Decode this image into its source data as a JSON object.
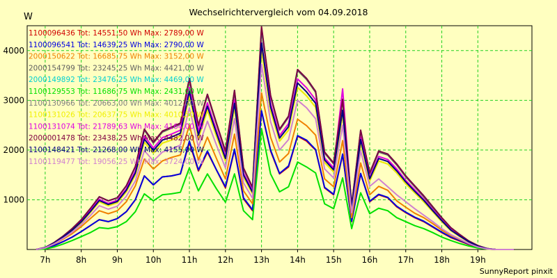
{
  "chart_data": {
    "type": "line",
    "title": "Wechselrichtervergleich vom 04.09.2018",
    "ylabel": "W",
    "xlabel": "",
    "footer": "SunnyReport pinxit",
    "ylim": [
      0,
      4500
    ],
    "xlim": [
      6.5,
      20.5
    ],
    "y_ticks": [
      1000,
      2000,
      3000,
      4000
    ],
    "y_tick_labels": [
      "1000",
      "2000",
      "3000",
      "4000"
    ],
    "x_ticks": [
      7,
      8,
      9,
      10,
      11,
      12,
      13,
      14,
      15,
      16,
      17,
      18,
      19
    ],
    "x_tick_labels": [
      "7h",
      "8h",
      "9h",
      "10h",
      "11h",
      "12h",
      "13h",
      "14h",
      "15h",
      "16h",
      "17h",
      "18h",
      "19h"
    ],
    "grid": true,
    "legend_position": "top-left",
    "x": [
      6.75,
      7.0,
      7.25,
      7.5,
      7.75,
      8.0,
      8.25,
      8.5,
      8.75,
      9.0,
      9.25,
      9.5,
      9.75,
      10.0,
      10.25,
      10.5,
      10.75,
      11.0,
      11.25,
      11.5,
      11.75,
      12.0,
      12.25,
      12.5,
      12.75,
      13.0,
      13.25,
      13.5,
      13.75,
      14.0,
      14.25,
      14.5,
      14.75,
      15.0,
      15.25,
      15.5,
      15.75,
      16.0,
      16.25,
      16.5,
      16.75,
      17.0,
      17.25,
      17.5,
      17.75,
      18.0,
      18.25,
      18.5,
      18.75,
      19.0,
      19.25,
      19.5,
      19.75,
      20.0
    ],
    "series": [
      {
        "name": "1100096436 Tot: 14551,50 Wh Max: 2789,00 W",
        "color": "#d00000",
        "values": [
          0,
          20,
          80,
          160,
          250,
          360,
          480,
          600,
          560,
          620,
          760,
          1000,
          1480,
          1300,
          1460,
          1480,
          1520,
          2150,
          1580,
          1960,
          1600,
          1240,
          2000,
          1020,
          780,
          2780,
          1980,
          1520,
          1660,
          2280,
          2180,
          2000,
          1240,
          1100,
          1900,
          560,
          1520,
          960,
          1100,
          1040,
          860,
          740,
          640,
          560,
          450,
          340,
          240,
          170,
          100,
          40,
          10,
          0,
          0,
          0
        ]
      },
      {
        "name": "1100096541 Tot: 14639,25 Wh Max: 2790,00 W",
        "color": "#0000e0",
        "values": [
          0,
          20,
          80,
          160,
          250,
          360,
          480,
          600,
          560,
          620,
          760,
          1000,
          1480,
          1300,
          1460,
          1480,
          1520,
          2180,
          1600,
          1980,
          1600,
          1260,
          2020,
          1040,
          800,
          2790,
          2000,
          1530,
          1680,
          2290,
          2200,
          2010,
          1250,
          1110,
          1920,
          570,
          1530,
          970,
          1110,
          1050,
          870,
          750,
          650,
          570,
          460,
          350,
          250,
          180,
          110,
          50,
          15,
          0,
          0,
          0
        ]
      },
      {
        "name": "2000150622 Tot: 16685,75 Wh Max: 3152,00 W",
        "color": "#f08000",
        "values": [
          0,
          30,
          110,
          210,
          320,
          460,
          620,
          780,
          720,
          780,
          960,
          1280,
          1820,
          1620,
          1780,
          1850,
          1900,
          2500,
          1800,
          2260,
          1830,
          1420,
          2320,
          1180,
          920,
          3150,
          2260,
          1760,
          1930,
          2620,
          2490,
          2300,
          1420,
          1260,
          2190,
          640,
          1740,
          1100,
          1270,
          1190,
          980,
          850,
          730,
          640,
          520,
          390,
          280,
          200,
          120,
          50,
          10,
          0,
          0,
          0
        ]
      },
      {
        "name": "2000154799 Tot: 23245,25 Wh Max: 4421,00 W",
        "color": "#606060",
        "values": [
          0,
          40,
          140,
          270,
          420,
          600,
          820,
          1060,
          980,
          1040,
          1280,
          1660,
          2400,
          2140,
          2360,
          2440,
          2520,
          3420,
          2480,
          3100,
          2520,
          1960,
          3160,
          1620,
          1240,
          4420,
          3080,
          2400,
          2660,
          3600,
          3420,
          3160,
          1940,
          1720,
          3000,
          880,
          2380,
          1520,
          1960,
          1900,
          1700,
          1460,
          1260,
          1060,
          840,
          620,
          420,
          280,
          160,
          70,
          20,
          0,
          0,
          0
        ]
      },
      {
        "name": "2000149892 Tot: 23476,25 Wh Max: 4469,00 W",
        "color": "#00d0d0",
        "values": [
          0,
          40,
          140,
          270,
          420,
          600,
          820,
          1060,
          980,
          1040,
          1280,
          1670,
          2420,
          2160,
          2380,
          2460,
          2540,
          3440,
          2500,
          3120,
          2540,
          1980,
          3200,
          1640,
          1250,
          4460,
          3100,
          2420,
          2680,
          3620,
          3440,
          3180,
          1960,
          1740,
          3020,
          890,
          2400,
          1540,
          1980,
          1920,
          1720,
          1480,
          1280,
          1080,
          860,
          640,
          440,
          300,
          170,
          80,
          20,
          0,
          0,
          0
        ]
      },
      {
        "name": "1100129553 Tot: 11686,75 Wh Max: 2431,00 W",
        "color": "#00e000",
        "values": [
          0,
          10,
          50,
          110,
          180,
          260,
          340,
          440,
          420,
          460,
          560,
          760,
          1120,
          980,
          1100,
          1120,
          1150,
          1640,
          1180,
          1520,
          1220,
          950,
          1520,
          780,
          600,
          2430,
          1520,
          1160,
          1260,
          1760,
          1660,
          1540,
          920,
          820,
          1440,
          420,
          1140,
          720,
          830,
          780,
          640,
          560,
          480,
          420,
          340,
          250,
          180,
          120,
          70,
          30,
          10,
          0,
          0,
          0
        ]
      },
      {
        "name": "1100130966 Tot: 20663,00 Wh Max: 4012,00 W",
        "color": "#808080",
        "values": [
          0,
          35,
          125,
          245,
          380,
          540,
          740,
          960,
          880,
          940,
          1160,
          1500,
          2160,
          1940,
          2140,
          2200,
          2280,
          3100,
          2240,
          2800,
          2280,
          1780,
          2860,
          1460,
          1120,
          4010,
          2790,
          2180,
          2400,
          3260,
          3090,
          2860,
          1750,
          1560,
          2720,
          800,
          2150,
          1380,
          1780,
          1720,
          1540,
          1320,
          1140,
          960,
          760,
          560,
          380,
          260,
          150,
          60,
          15,
          0,
          0,
          0
        ]
      },
      {
        "name": "1100131026 Tot: 20637,75 Wh Max: 4010,50 W",
        "color": "#f0f000",
        "values": [
          0,
          35,
          125,
          245,
          380,
          540,
          740,
          960,
          880,
          940,
          1160,
          1500,
          2160,
          1940,
          2140,
          2200,
          2280,
          3100,
          2240,
          2800,
          2280,
          1780,
          2860,
          1460,
          1120,
          4010,
          2790,
          2180,
          2400,
          3260,
          3090,
          2860,
          1750,
          1560,
          2720,
          800,
          2150,
          1380,
          1780,
          1720,
          1540,
          1320,
          1140,
          960,
          760,
          560,
          380,
          260,
          150,
          60,
          15,
          0,
          0,
          0
        ]
      },
      {
        "name": "1100131074 Tot: 21789,63 Wh Max: 4164,00 W",
        "color": "#e000e0",
        "values": [
          0,
          38,
          132,
          258,
          400,
          570,
          780,
          1010,
          930,
          990,
          1220,
          1580,
          2280,
          2040,
          2250,
          2320,
          2400,
          3260,
          2360,
          2950,
          2400,
          1870,
          3010,
          1540,
          1180,
          4160,
          2940,
          2290,
          2530,
          3430,
          3250,
          3010,
          1840,
          1640,
          3230,
          840,
          2260,
          1450,
          1870,
          1810,
          1620,
          1390,
          1200,
          1010,
          800,
          590,
          400,
          270,
          160,
          70,
          20,
          0,
          0,
          0
        ]
      },
      {
        "name": "2000001478 Tot: 23438,25 Wh Max: 4482,00 W",
        "color": "#800040",
        "values": [
          0,
          40,
          140,
          270,
          420,
          600,
          820,
          1060,
          980,
          1040,
          1280,
          1670,
          2420,
          2160,
          2380,
          2460,
          2540,
          3440,
          2500,
          3120,
          2540,
          1980,
          3200,
          1640,
          1250,
          4480,
          3100,
          2420,
          2680,
          3620,
          3440,
          3180,
          1960,
          1740,
          3020,
          890,
          2400,
          1540,
          1980,
          1920,
          1720,
          1480,
          1280,
          1080,
          860,
          640,
          440,
          300,
          170,
          80,
          20,
          0,
          0,
          0
        ]
      },
      {
        "name": "1100148421 Tot: 21268,00 Wh Max: 4155,00 W",
        "color": "#000080",
        "values": [
          0,
          36,
          128,
          250,
          390,
          555,
          760,
          985,
          905,
          965,
          1190,
          1540,
          2220,
          1990,
          2200,
          2260,
          2340,
          3180,
          2300,
          2880,
          2340,
          1830,
          2940,
          1500,
          1150,
          4150,
          2870,
          2240,
          2470,
          3350,
          3170,
          2940,
          1800,
          1600,
          2800,
          820,
          2210,
          1420,
          1830,
          1770,
          1580,
          1360,
          1170,
          990,
          780,
          580,
          390,
          270,
          155,
          65,
          18,
          0,
          0,
          0
        ]
      },
      {
        "name": "1100119477 Tot: 19056,25 Wh Max: 3724,00 W",
        "color": "#d080d0",
        "values": [
          0,
          32,
          115,
          225,
          350,
          500,
          680,
          880,
          810,
          870,
          1070,
          1380,
          1990,
          1780,
          1960,
          2020,
          2100,
          2850,
          2060,
          2580,
          2100,
          1640,
          2630,
          1340,
          1030,
          3720,
          2570,
          2000,
          2210,
          3000,
          2850,
          2630,
          1620,
          1440,
          2500,
          740,
          1980,
          1270,
          1420,
          1260,
          1100,
          960,
          820,
          690,
          560,
          420,
          300,
          210,
          120,
          50,
          12,
          0,
          0,
          0
        ]
      }
    ]
  }
}
